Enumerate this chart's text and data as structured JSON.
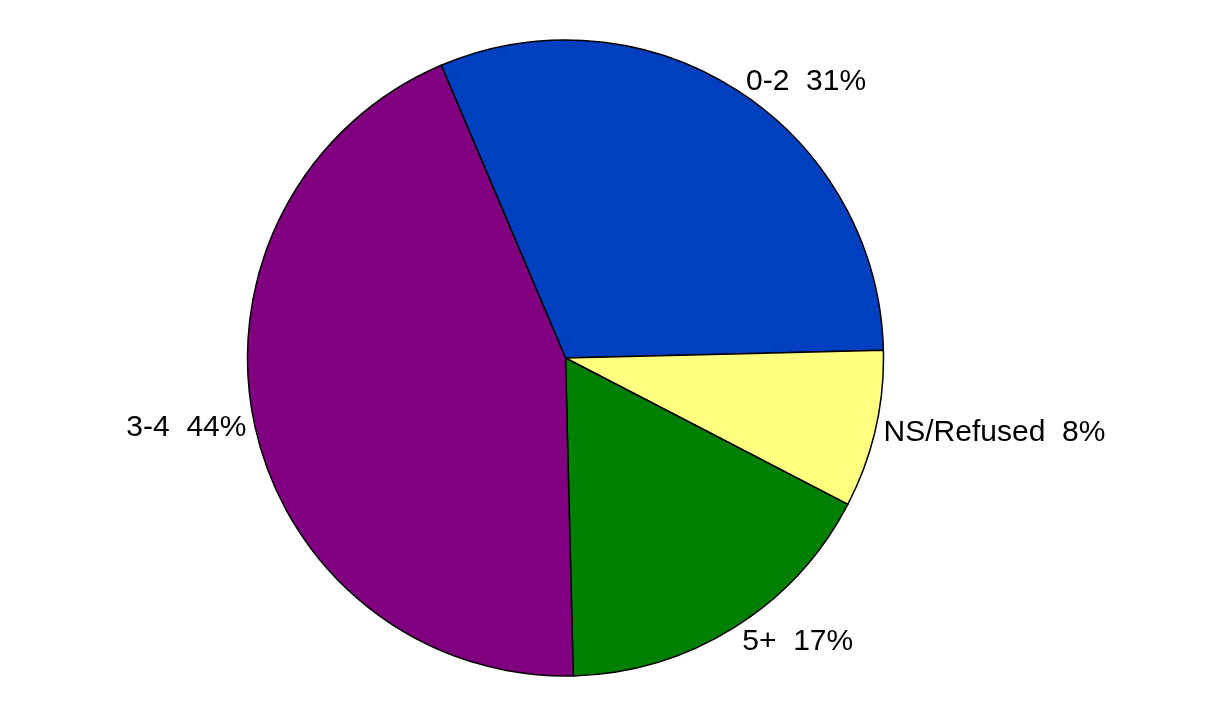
{
  "chart_data": {
    "type": "pie",
    "categories": [
      "0-2",
      "NS/Refused",
      "5+",
      "3-4"
    ],
    "values": [
      31,
      8,
      17,
      44
    ],
    "value_labels": [
      "31%",
      "8%",
      "17%",
      "44%"
    ],
    "colors": [
      "#0040c0",
      "#ffff80",
      "#008000",
      "#800080"
    ],
    "legend": false
  }
}
